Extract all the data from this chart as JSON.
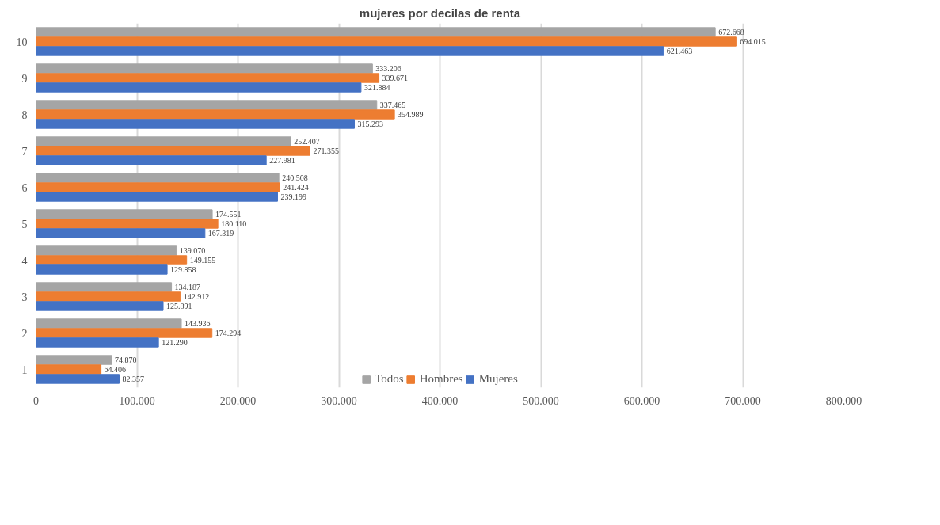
{
  "chart_data": {
    "type": "bar",
    "orientation": "horizontal",
    "title": "mujeres por decilas de renta",
    "categories": [
      "10",
      "9",
      "8",
      "7",
      "6",
      "5",
      "4",
      "3",
      "2",
      "1"
    ],
    "series": [
      {
        "name": "Todos",
        "color": "#a5a5a5",
        "values": [
          672668,
          333206,
          337465,
          252407,
          240508,
          174551,
          139070,
          134187,
          143936,
          74870
        ],
        "value_labels": [
          "672.668",
          "333.206",
          "337.465",
          "252.407",
          "240.508",
          "174.551",
          "139.070",
          "134.187",
          "143.936",
          "74.870"
        ]
      },
      {
        "name": "Hombres",
        "color": "#ed7d31",
        "values": [
          694015,
          339671,
          354989,
          271355,
          241424,
          180110,
          149155,
          142912,
          174294,
          64406
        ],
        "value_labels": [
          "694.015",
          "339.671",
          "354.989",
          "271.355",
          "241.424",
          "180.110",
          "149.155",
          "142.912",
          "174.294",
          "64.406"
        ]
      },
      {
        "name": "Mujeres",
        "color": "#4472c4",
        "values": [
          621463,
          321884,
          315293,
          227981,
          239199,
          167319,
          129858,
          125891,
          121290,
          82357
        ],
        "value_labels": [
          "621.463",
          "321.884",
          "315.293",
          "227.981",
          "239.199",
          "167.319",
          "129.858",
          "125.891",
          "121.290",
          "82.357"
        ]
      }
    ],
    "xlim": [
      0,
      800000
    ],
    "xticks": [
      0,
      {
        "value": 100000,
        "label": "100.000"
      },
      {
        "value": 200000,
        "label": "200.000"
      },
      {
        "value": 300000,
        "label": "300.000"
      },
      {
        "value": 400000,
        "label": "400.000"
      },
      {
        "value": 500000,
        "label": "500.000"
      },
      {
        "value": 600000,
        "label": "600.000"
      },
      {
        "value": 700000,
        "label": "700.000"
      },
      {
        "value": 800000,
        "label": "800.000"
      }
    ],
    "grid": "x",
    "legend": "bottom"
  }
}
